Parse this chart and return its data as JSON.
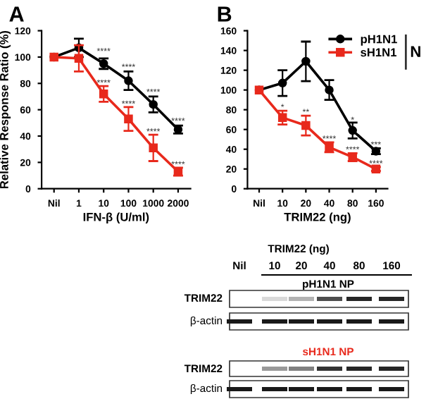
{
  "chart_data": [
    {
      "type": "line",
      "title": "A",
      "xlabel": "IFN-β (U/ml)",
      "ylabel": "Relative Response Ratio (%)",
      "categories": [
        "Nil",
        "1",
        "10",
        "100",
        "1000",
        "2000"
      ],
      "ylim": [
        0,
        120
      ],
      "yticks": [
        0,
        20,
        40,
        60,
        80,
        100,
        120
      ],
      "grid": false,
      "legend": false,
      "series": [
        {
          "color": "#000000",
          "marker": "circle",
          "values": [
            100,
            107,
            95,
            82,
            64,
            45
          ],
          "errors": [
            null,
            7,
            4,
            7,
            6,
            3
          ]
        },
        {
          "color": "#e8291c",
          "marker": "square",
          "values": [
            100,
            99,
            72,
            53,
            31,
            13
          ],
          "errors": [
            null,
            10,
            6,
            9,
            10,
            3
          ]
        }
      ],
      "annotations": [
        {
          "text": "****",
          "x": "10",
          "y": 104
        },
        {
          "text": "****",
          "x": "100",
          "y": 92
        },
        {
          "text": "****",
          "x": "1000",
          "y": 73
        },
        {
          "text": "****",
          "x": "2000",
          "y": 51
        },
        {
          "text": "****",
          "x": "10",
          "y": 80
        },
        {
          "text": "****",
          "x": "100",
          "y": 64
        },
        {
          "text": "****",
          "x": "1000",
          "y": 43
        },
        {
          "text": "****",
          "x": "2000",
          "y": 18
        }
      ]
    },
    {
      "type": "line",
      "title": "B",
      "xlabel": "TRIM22 (ng)",
      "categories": [
        "Nil",
        "10",
        "20",
        "40",
        "80",
        "160"
      ],
      "ylim": [
        0,
        160
      ],
      "yticks": [
        0,
        20,
        40,
        60,
        80,
        100,
        120,
        140,
        160
      ],
      "grid": false,
      "legend": "top right",
      "legend_title": "N",
      "series": [
        {
          "name": "pH1N1",
          "color": "#000000",
          "marker": "circle",
          "values": [
            100,
            107,
            129,
            100,
            59,
            38
          ],
          "errors": [
            null,
            13,
            20,
            10,
            8,
            3
          ]
        },
        {
          "name": "sH1N1",
          "color": "#e8291c",
          "marker": "square",
          "values": [
            100,
            72,
            64,
            42,
            32,
            20
          ],
          "errors": [
            null,
            7,
            10,
            5,
            4,
            2
          ]
        }
      ],
      "annotations": [
        {
          "text": "*",
          "x": "10",
          "y": 82
        },
        {
          "text": "**",
          "x": "20",
          "y": 77
        },
        {
          "text": "****",
          "x": "40",
          "y": 50
        },
        {
          "text": "*",
          "x": "80",
          "y": 69
        },
        {
          "text": "****",
          "x": "80",
          "y": 39
        },
        {
          "text": "***",
          "x": "160",
          "y": 44
        },
        {
          "text": "****",
          "x": "160",
          "y": 25
        }
      ]
    },
    {
      "type": "other",
      "annotations": [
        "TRIM22 (ng)",
        "Nil",
        "10",
        "20",
        "40",
        "80",
        "160",
        "pH1N1 NP",
        "TRIM22",
        "β-actin",
        "sH1N1 NP",
        "TRIM22",
        "β-actin"
      ]
    }
  ]
}
